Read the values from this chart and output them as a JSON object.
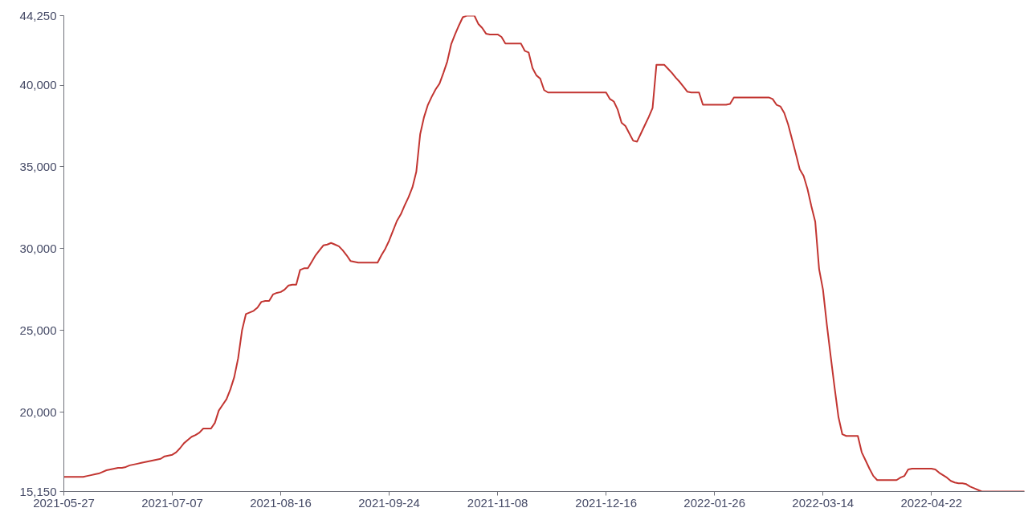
{
  "chart_data": {
    "type": "line",
    "categories": [
      "2021-05-27",
      null,
      null,
      null,
      null,
      null,
      null,
      null,
      null,
      null,
      null,
      null,
      null,
      null,
      null,
      null,
      null,
      null,
      null,
      null,
      null,
      null,
      null,
      null,
      null,
      null,
      null,
      null,
      "2021-07-07",
      null,
      null,
      null,
      null,
      null,
      null,
      null,
      null,
      null,
      null,
      null,
      null,
      null,
      null,
      null,
      null,
      null,
      null,
      null,
      null,
      null,
      null,
      null,
      null,
      null,
      null,
      null,
      "2021-08-16",
      null,
      null,
      null,
      null,
      null,
      null,
      null,
      null,
      null,
      null,
      null,
      null,
      null,
      null,
      null,
      null,
      null,
      null,
      null,
      null,
      null,
      null,
      null,
      null,
      null,
      null,
      null,
      "2021-09-24",
      null,
      null,
      null,
      null,
      null,
      null,
      null,
      null,
      null,
      null,
      null,
      null,
      null,
      null,
      null,
      null,
      null,
      null,
      null,
      null,
      null,
      null,
      null,
      null,
      null,
      null,
      null,
      "2021-11-08",
      null,
      null,
      null,
      null,
      null,
      null,
      null,
      null,
      null,
      null,
      null,
      null,
      null,
      null,
      null,
      null,
      null,
      null,
      null,
      null,
      null,
      null,
      null,
      null,
      null,
      null,
      null,
      "2021-12-16",
      null,
      null,
      null,
      null,
      null,
      null,
      null,
      null,
      null,
      null,
      null,
      null,
      null,
      null,
      null,
      null,
      null,
      null,
      null,
      null,
      null,
      null,
      null,
      null,
      null,
      null,
      null,
      "2022-01-26",
      null,
      null,
      null,
      null,
      null,
      null,
      null,
      null,
      null,
      null,
      null,
      null,
      null,
      null,
      null,
      null,
      null,
      null,
      null,
      null,
      null,
      null,
      null,
      null,
      null,
      null,
      null,
      "2022-03-14",
      null,
      null,
      null,
      null,
      null,
      null,
      null,
      null,
      null,
      null,
      null,
      null,
      null,
      null,
      null,
      null,
      null,
      null,
      null,
      null,
      null,
      null,
      null,
      null,
      null,
      null,
      null,
      "2022-04-22",
      null,
      null,
      null,
      null,
      null,
      null,
      null,
      null,
      null,
      null,
      null,
      null,
      null,
      null,
      null,
      null,
      null,
      null,
      null,
      null,
      null,
      null,
      null,
      null
    ],
    "values": [
      16050,
      16050,
      16050,
      16050,
      16050,
      16050,
      16100,
      16150,
      16200,
      16250,
      16350,
      16450,
      16500,
      16550,
      16600,
      16600,
      16650,
      16750,
      16800,
      16850,
      16900,
      16950,
      17000,
      17050,
      17100,
      17150,
      17300,
      17350,
      17400,
      17550,
      17800,
      18100,
      18300,
      18500,
      18600,
      18750,
      19000,
      19000,
      19000,
      19350,
      20100,
      20450,
      20800,
      21400,
      22150,
      23300,
      25000,
      26000,
      26100,
      26200,
      26400,
      26750,
      26800,
      26800,
      27200,
      27300,
      27350,
      27500,
      27750,
      27800,
      27800,
      28700,
      28800,
      28800,
      29200,
      29600,
      29900,
      30200,
      30250,
      30350,
      30250,
      30150,
      29900,
      29600,
      29250,
      29200,
      29150,
      29150,
      29150,
      29150,
      29150,
      29150,
      29600,
      30000,
      30500,
      31100,
      31700,
      32100,
      32650,
      33150,
      33750,
      34700,
      37000,
      38050,
      38800,
      39300,
      39750,
      40100,
      40750,
      41450,
      42500,
      43100,
      43650,
      44150,
      44250,
      44250,
      44250,
      43750,
      43500,
      43150,
      43100,
      43100,
      43100,
      42950,
      42550,
      42550,
      42550,
      42550,
      42550,
      42100,
      42000,
      41050,
      40600,
      40400,
      39700,
      39550,
      39550,
      39550,
      39550,
      39550,
      39550,
      39550,
      39550,
      39550,
      39550,
      39550,
      39550,
      39550,
      39550,
      39550,
      39550,
      39150,
      39000,
      38500,
      37700,
      37500,
      37050,
      36600,
      36550,
      37050,
      37550,
      38050,
      38600,
      41250,
      41250,
      41250,
      41000,
      40750,
      40450,
      40200,
      39900,
      39600,
      39550,
      39550,
      39550,
      38800,
      38800,
      38800,
      38800,
      38800,
      38800,
      38800,
      38850,
      39250,
      39250,
      39250,
      39250,
      39250,
      39250,
      39250,
      39250,
      39250,
      39250,
      39150,
      38800,
      38700,
      38300,
      37600,
      36700,
      35800,
      34850,
      34450,
      33650,
      32600,
      31650,
      28750,
      27500,
      25350,
      23400,
      21500,
      19700,
      18650,
      18550,
      18550,
      18550,
      18550,
      17550,
      17050,
      16550,
      16100,
      15850,
      15850,
      15850,
      15850,
      15850,
      15850,
      16000,
      16100,
      16500,
      16550,
      16550,
      16550,
      16550,
      16550,
      16550,
      16500,
      16300,
      16150,
      16000,
      15800,
      15700,
      15650,
      15650,
      15600,
      15450,
      15350,
      15250,
      15150,
      15150,
      15150,
      15150,
      15150,
      15150,
      15150,
      15150,
      15150,
      15150,
      15150,
      15150
    ],
    "color": "#c23531",
    "ylim": [
      15150,
      44250
    ],
    "yticks": [
      {
        "value": 15150,
        "label": "15,150"
      },
      {
        "value": 20000,
        "label": "20,000"
      },
      {
        "value": 25000,
        "label": "25,000"
      },
      {
        "value": 30000,
        "label": "30,000"
      },
      {
        "value": 35000,
        "label": "35,000"
      },
      {
        "value": 40000,
        "label": "40,000"
      },
      {
        "value": 44250,
        "label": "44,250"
      }
    ],
    "grid": false
  }
}
